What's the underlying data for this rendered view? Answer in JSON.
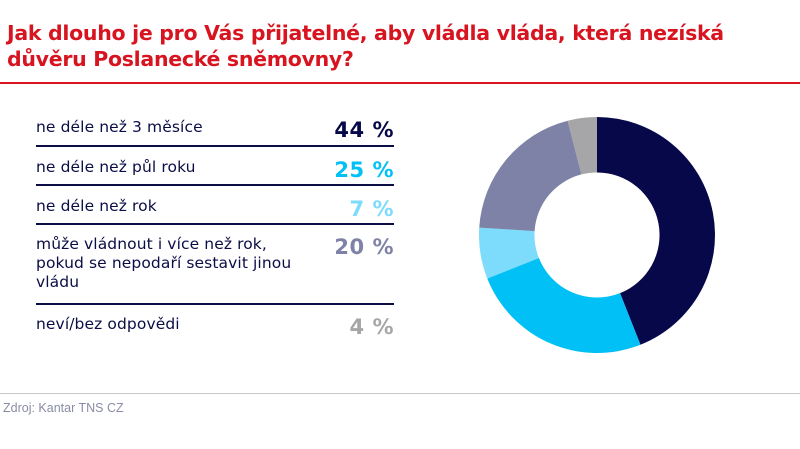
{
  "title": "Jak dlouho je pro Vás přijatelné, aby vládla vláda, která nezíská důvěru Poslanecké sněmovny?",
  "source": "Zdroj: Kantar TNS CZ",
  "colors": {
    "title": "#d7141f",
    "text": "#0b0d45",
    "divider": "#0b0d45"
  },
  "rows": [
    {
      "label": "ne déle než 3 měsíce",
      "value": "44 %",
      "color": "#06084a"
    },
    {
      "label": "ne déle než půl roku",
      "value": "25 %",
      "color": "#00c0f5"
    },
    {
      "label": "ne déle než rok",
      "value": "7 %",
      "color": "#7ddbfb"
    },
    {
      "label": "může vládnout i více než rok, pokud se nepodaří sestavit jinou vládu",
      "value": "20 %",
      "color": "#7e82a6"
    },
    {
      "label": "neví/bez odpovědi",
      "value": "4 %",
      "color": "#a6a6a8"
    }
  ],
  "chart_data": {
    "type": "pie",
    "subtype": "donut",
    "title": "Jak dlouho je pro Vás přijatelné, aby vládla vláda, která nezíská důvěru Poslanecké sněmovny?",
    "categories": [
      "ne déle než 3 měsíce",
      "ne déle než půl roku",
      "ne déle než rok",
      "může vládnout i více než rok, pokud se nepodaří sestavit jinou vládu",
      "neví/bez odpovědi"
    ],
    "values": [
      44,
      25,
      7,
      20,
      4
    ],
    "unit": "%",
    "colors": [
      "#06084a",
      "#00c0f5",
      "#7ddbfb",
      "#7e82a6",
      "#a6a6a8"
    ],
    "start_angle": "12 o'clock",
    "direction": "clockwise",
    "inner_radius_ratio": 0.53,
    "legend": "table on left with values",
    "source": "Zdroj: Kantar TNS CZ"
  }
}
